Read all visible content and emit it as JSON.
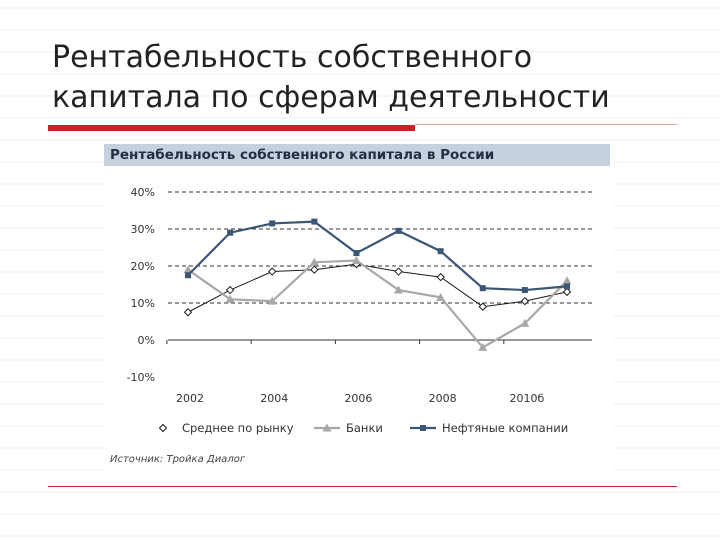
{
  "slide": {
    "title_line1": "Рентабельность собственного",
    "title_line2": "капитала по сферам деятельности",
    "accent_color": "#cc1f26"
  },
  "chart_data": {
    "type": "line",
    "title": "Рентабельность собственного капитала в России",
    "x": [
      "2002",
      "",
      "2004",
      "",
      "2006",
      "",
      "2008",
      "",
      "2010б",
      ""
    ],
    "x_tick_labels": [
      "2002",
      "2004",
      "2006",
      "2008",
      "2010б"
    ],
    "y_tick_labels": [
      "40%",
      "30%",
      "20%",
      "10%",
      "0%",
      "-10%"
    ],
    "y_ticks": [
      40,
      30,
      20,
      10,
      0,
      -10
    ],
    "ylim": [
      -10,
      40
    ],
    "grid": "dashed horizontal",
    "legend_position": "bottom",
    "series": [
      {
        "name": "Среднее по рынку",
        "color": "#1a1a1a",
        "marker": "diamond-open",
        "values": [
          7.5,
          13.5,
          18.5,
          19,
          20.5,
          18.5,
          17,
          9,
          10.5,
          13
        ]
      },
      {
        "name": "Банки",
        "color": "#a8a8a8",
        "marker": "triangle",
        "values": [
          19,
          11,
          10.5,
          21,
          21.5,
          13.5,
          11.5,
          -2,
          4.5,
          16
        ]
      },
      {
        "name": "Нефтяные компании",
        "color": "#3b5775",
        "marker": "square",
        "values": [
          17.5,
          29,
          31.5,
          32,
          23.5,
          29.5,
          24,
          14,
          13.5,
          14.5
        ]
      }
    ],
    "source": "Источник: Тройка Диалог"
  }
}
